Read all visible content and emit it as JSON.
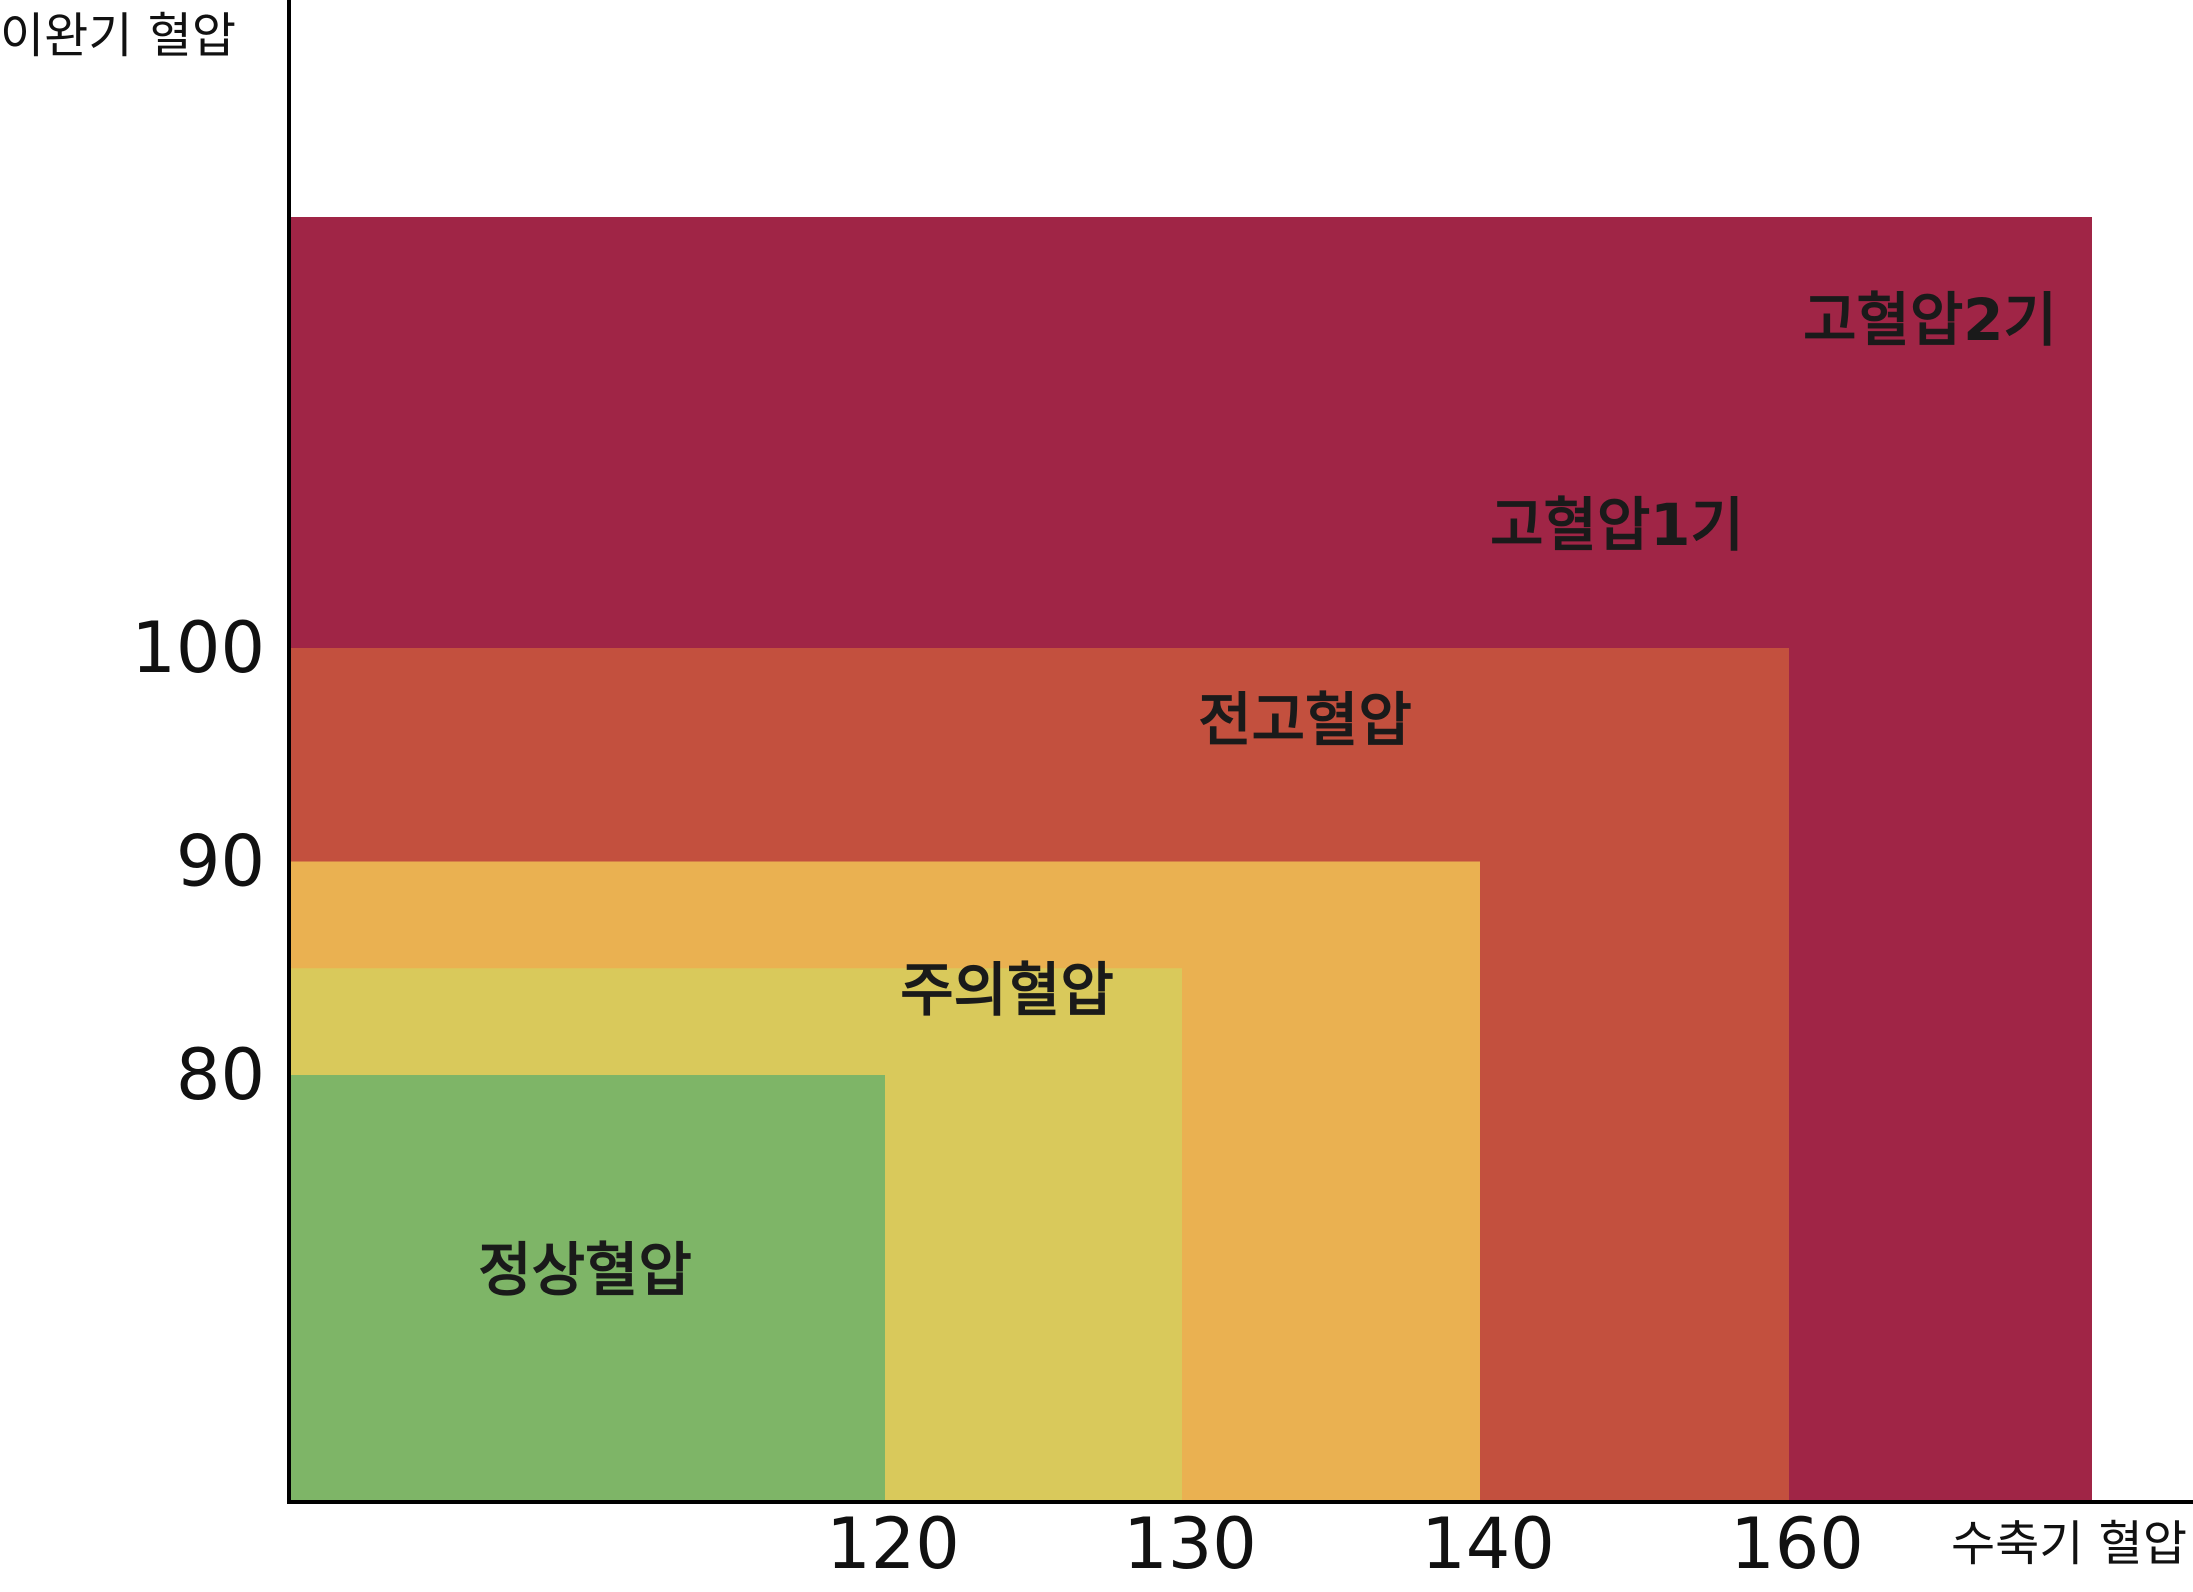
{
  "chart_data": {
    "type": "area",
    "title": "",
    "xlabel": "수축기 혈압",
    "ylabel": "이완기 혈압",
    "x_ticks": [
      "120",
      "130",
      "140",
      "160"
    ],
    "y_ticks": [
      "80",
      "90",
      "100"
    ],
    "grid": false,
    "categories": [
      {
        "name": "정상혈압",
        "systolic_max": 120,
        "diastolic_max": 80,
        "color": "#7eb567"
      },
      {
        "name": "주의혈압",
        "systolic_max": 130,
        "diastolic_max": 85,
        "color": "#d9c95b"
      },
      {
        "name": "전고혈압",
        "systolic_max": 140,
        "diastolic_max": 90,
        "color": "#eab151"
      },
      {
        "name": "고혈압1기",
        "systolic_max": 160,
        "diastolic_max": 100,
        "color": "#c3503e"
      },
      {
        "name": "고혈압2기",
        "systolic_max": null,
        "diastolic_max": null,
        "color": "#a02546"
      }
    ]
  }
}
